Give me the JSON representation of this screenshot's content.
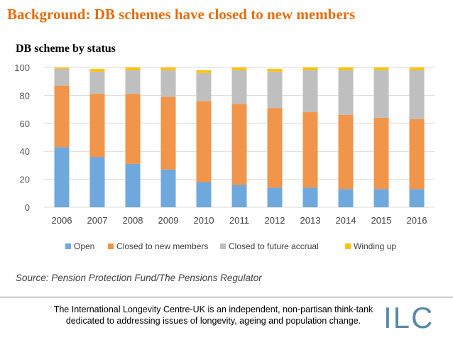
{
  "slide": {
    "title": "Background: DB schemes have closed to new members",
    "source": "Source: Pension Protection Fund/The Pensions Regulator",
    "footer_text": "The International Longevity Centre-UK is an independent, non-partisan think-tank dedicated to addressing issues of longevity, ageing and population change.",
    "logo_text": "ILC"
  },
  "chart_data": {
    "type": "bar",
    "stacked": true,
    "title": "DB scheme by status",
    "xlabel": "",
    "ylabel": "",
    "ylim": [
      0,
      100
    ],
    "yticks": [
      0,
      20,
      40,
      60,
      80,
      100
    ],
    "grid": true,
    "legend_position": "bottom",
    "categories": [
      "2006",
      "2007",
      "2008",
      "2009",
      "2010",
      "2011",
      "2012",
      "2013",
      "2014",
      "2015",
      "2016"
    ],
    "series": [
      {
        "name": "Open",
        "color": "#6fa8dc",
        "values": [
          43,
          36,
          31,
          27,
          18,
          16,
          14,
          14,
          13,
          13,
          13
        ]
      },
      {
        "name": "Closed to new members",
        "color": "#f0954a",
        "values": [
          44,
          45,
          50,
          52,
          58,
          58,
          57,
          54,
          53,
          51,
          50
        ]
      },
      {
        "name": "Closed to future accrual",
        "color": "#bfbfbf",
        "values": [
          12,
          16,
          17,
          19,
          20,
          24,
          26,
          30,
          32,
          34,
          35
        ]
      },
      {
        "name": "Winding up",
        "color": "#ffc20e",
        "values": [
          1,
          2,
          2,
          2,
          2,
          2,
          2,
          2,
          2,
          2,
          2
        ]
      }
    ]
  }
}
